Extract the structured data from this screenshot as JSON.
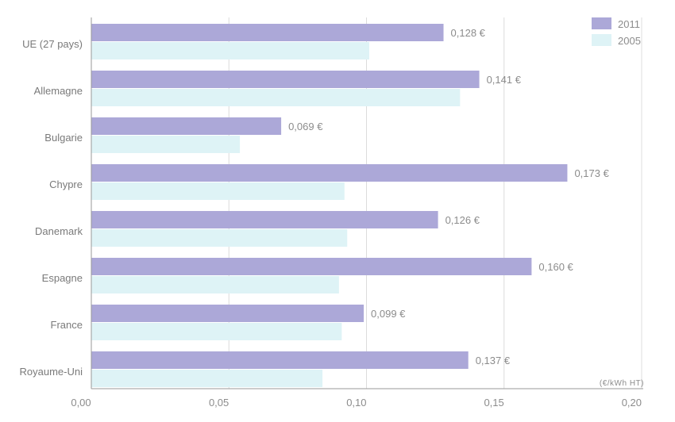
{
  "chart_data": {
    "type": "bar",
    "orientation": "horizontal",
    "title": "",
    "xlabel": "",
    "ylabel": "",
    "unit_label": "(€/kWh HT)",
    "xlim": [
      0,
      0.2
    ],
    "x_ticks": [
      0,
      0.05,
      0.1,
      0.15,
      0.2
    ],
    "x_tick_labels": [
      "0,00",
      "0,05",
      "0,10",
      "0,15",
      "0,20"
    ],
    "grid": true,
    "legend_position": "top-right",
    "categories": [
      "UE (27 pays)",
      "Allemagne",
      "Bulgarie",
      "Chypre",
      "Danemark",
      "Espagne",
      "France",
      "Royaume-Uni"
    ],
    "series": [
      {
        "name": "2011",
        "color": "#aca8d8",
        "values": [
          0.128,
          0.141,
          0.069,
          0.173,
          0.126,
          0.16,
          0.099,
          0.137
        ],
        "data_labels": [
          "0,128 €",
          "0,141 €",
          "0,069 €",
          "0,173 €",
          "0,126 €",
          "0,160 €",
          "0,099 €",
          "0,137 €"
        ]
      },
      {
        "name": "2005",
        "color": "#def3f6",
        "values": [
          0.101,
          0.134,
          0.054,
          0.092,
          0.093,
          0.09,
          0.091,
          0.084
        ]
      }
    ]
  }
}
